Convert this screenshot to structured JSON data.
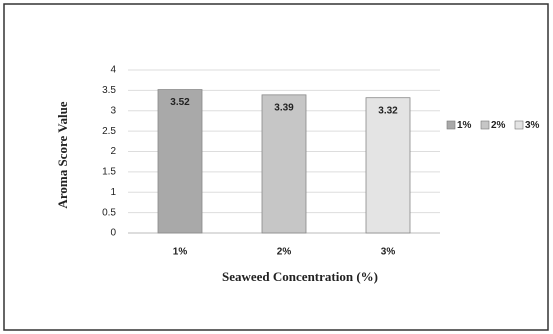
{
  "chart_data": {
    "type": "bar",
    "x_label": "Seaweed Concentration (%)",
    "y_label": "Aroma  Score Value",
    "categories": [
      "1%",
      "2%",
      "3%"
    ],
    "values": [
      3.52,
      3.39,
      3.32
    ],
    "colors": [
      "#a9a9a9",
      "#c6c6c6",
      "#e4e4e4"
    ],
    "ylim": [
      0,
      4
    ],
    "yticks": [
      0,
      0.5,
      1,
      1.5,
      2,
      2.5,
      3,
      3.5,
      4
    ],
    "grid": true,
    "legend": "right"
  }
}
